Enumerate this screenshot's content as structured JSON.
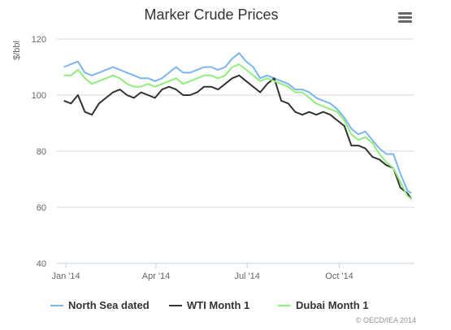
{
  "chart_data": {
    "type": "line",
    "title": "Marker Crude Prices",
    "xlabel": "",
    "ylabel": "$/bbl",
    "ylim": [
      40,
      120
    ],
    "yticks": [
      40,
      60,
      80,
      100,
      120
    ],
    "xlim": [
      "2013-12-23",
      "2014-12-15"
    ],
    "xticks": [
      {
        "date": "2014-01-01",
        "label": "Jan '14"
      },
      {
        "date": "2014-04-01",
        "label": "Apr '14"
      },
      {
        "date": "2014-07-01",
        "label": "Jul '14"
      },
      {
        "date": "2014-10-01",
        "label": "Oct '14"
      }
    ],
    "grid": true,
    "legend": "bottom",
    "credit": "© OECD/IEA 2014",
    "series": [
      {
        "name": "North Sea dated",
        "color": "#7cb5ec",
        "points": [
          [
            "2013-12-30",
            110
          ],
          [
            "2014-01-06",
            111
          ],
          [
            "2014-01-13",
            112
          ],
          [
            "2014-01-20",
            108
          ],
          [
            "2014-01-27",
            107
          ],
          [
            "2014-02-03",
            108
          ],
          [
            "2014-02-10",
            109
          ],
          [
            "2014-02-17",
            110
          ],
          [
            "2014-02-24",
            109
          ],
          [
            "2014-03-03",
            108
          ],
          [
            "2014-03-10",
            107
          ],
          [
            "2014-03-17",
            106
          ],
          [
            "2014-03-24",
            106
          ],
          [
            "2014-03-31",
            105
          ],
          [
            "2014-04-07",
            106
          ],
          [
            "2014-04-14",
            108
          ],
          [
            "2014-04-21",
            110
          ],
          [
            "2014-04-28",
            108
          ],
          [
            "2014-05-05",
            108
          ],
          [
            "2014-05-12",
            109
          ],
          [
            "2014-05-19",
            110
          ],
          [
            "2014-05-26",
            110
          ],
          [
            "2014-06-02",
            109
          ],
          [
            "2014-06-09",
            110
          ],
          [
            "2014-06-16",
            113
          ],
          [
            "2014-06-23",
            115
          ],
          [
            "2014-06-30",
            112
          ],
          [
            "2014-07-07",
            110
          ],
          [
            "2014-07-14",
            106
          ],
          [
            "2014-07-21",
            107
          ],
          [
            "2014-07-28",
            106
          ],
          [
            "2014-08-04",
            105
          ],
          [
            "2014-08-11",
            104
          ],
          [
            "2014-08-18",
            102
          ],
          [
            "2014-08-25",
            102
          ],
          [
            "2014-09-01",
            101
          ],
          [
            "2014-09-08",
            99
          ],
          [
            "2014-09-15",
            98
          ],
          [
            "2014-09-22",
            97
          ],
          [
            "2014-09-29",
            95
          ],
          [
            "2014-10-06",
            92
          ],
          [
            "2014-10-13",
            88
          ],
          [
            "2014-10-20",
            86
          ],
          [
            "2014-10-27",
            87
          ],
          [
            "2014-11-03",
            84
          ],
          [
            "2014-11-10",
            81
          ],
          [
            "2014-11-17",
            79
          ],
          [
            "2014-11-24",
            79
          ],
          [
            "2014-12-01",
            72
          ],
          [
            "2014-12-08",
            66
          ],
          [
            "2014-12-12",
            65
          ]
        ]
      },
      {
        "name": "WTI Month 1",
        "color": "#333333",
        "points": [
          [
            "2013-12-30",
            98
          ],
          [
            "2014-01-06",
            97
          ],
          [
            "2014-01-13",
            100
          ],
          [
            "2014-01-20",
            94
          ],
          [
            "2014-01-27",
            93
          ],
          [
            "2014-02-03",
            97
          ],
          [
            "2014-02-10",
            99
          ],
          [
            "2014-02-17",
            101
          ],
          [
            "2014-02-24",
            102
          ],
          [
            "2014-03-03",
            100
          ],
          [
            "2014-03-10",
            99
          ],
          [
            "2014-03-17",
            101
          ],
          [
            "2014-03-24",
            100
          ],
          [
            "2014-03-31",
            99
          ],
          [
            "2014-04-07",
            102
          ],
          [
            "2014-04-14",
            103
          ],
          [
            "2014-04-21",
            102
          ],
          [
            "2014-04-28",
            100
          ],
          [
            "2014-05-05",
            100
          ],
          [
            "2014-05-12",
            101
          ],
          [
            "2014-05-19",
            103
          ],
          [
            "2014-05-26",
            103
          ],
          [
            "2014-06-02",
            102
          ],
          [
            "2014-06-09",
            104
          ],
          [
            "2014-06-16",
            106
          ],
          [
            "2014-06-23",
            107
          ],
          [
            "2014-06-30",
            105
          ],
          [
            "2014-07-07",
            103
          ],
          [
            "2014-07-14",
            101
          ],
          [
            "2014-07-21",
            104
          ],
          [
            "2014-07-28",
            106
          ],
          [
            "2014-08-04",
            98
          ],
          [
            "2014-08-11",
            97
          ],
          [
            "2014-08-18",
            94
          ],
          [
            "2014-08-25",
            93
          ],
          [
            "2014-09-01",
            94
          ],
          [
            "2014-09-08",
            93
          ],
          [
            "2014-09-15",
            94
          ],
          [
            "2014-09-22",
            93
          ],
          [
            "2014-09-29",
            91
          ],
          [
            "2014-10-06",
            89
          ],
          [
            "2014-10-13",
            82
          ],
          [
            "2014-10-20",
            82
          ],
          [
            "2014-10-27",
            81
          ],
          [
            "2014-11-03",
            78
          ],
          [
            "2014-11-10",
            77
          ],
          [
            "2014-11-17",
            75
          ],
          [
            "2014-11-24",
            74
          ],
          [
            "2014-12-01",
            67
          ],
          [
            "2014-12-08",
            65
          ],
          [
            "2014-12-12",
            63
          ]
        ]
      },
      {
        "name": "Dubai Month 1",
        "color": "#90ed7d",
        "points": [
          [
            "2013-12-30",
            107
          ],
          [
            "2014-01-06",
            107
          ],
          [
            "2014-01-13",
            109
          ],
          [
            "2014-01-20",
            106
          ],
          [
            "2014-01-27",
            104
          ],
          [
            "2014-02-03",
            105
          ],
          [
            "2014-02-10",
            106
          ],
          [
            "2014-02-17",
            107
          ],
          [
            "2014-02-24",
            106
          ],
          [
            "2014-03-03",
            104
          ],
          [
            "2014-03-10",
            103
          ],
          [
            "2014-03-17",
            103
          ],
          [
            "2014-03-24",
            104
          ],
          [
            "2014-03-31",
            103
          ],
          [
            "2014-04-07",
            104
          ],
          [
            "2014-04-14",
            105
          ],
          [
            "2014-04-21",
            106
          ],
          [
            "2014-04-28",
            104
          ],
          [
            "2014-05-05",
            105
          ],
          [
            "2014-05-12",
            106
          ],
          [
            "2014-05-19",
            107
          ],
          [
            "2014-05-26",
            107
          ],
          [
            "2014-06-02",
            106
          ],
          [
            "2014-06-09",
            107
          ],
          [
            "2014-06-16",
            110
          ],
          [
            "2014-06-23",
            111
          ],
          [
            "2014-06-30",
            109
          ],
          [
            "2014-07-07",
            107
          ],
          [
            "2014-07-14",
            105
          ],
          [
            "2014-07-21",
            106
          ],
          [
            "2014-07-28",
            105
          ],
          [
            "2014-08-04",
            104
          ],
          [
            "2014-08-11",
            103
          ],
          [
            "2014-08-18",
            101
          ],
          [
            "2014-08-25",
            101
          ],
          [
            "2014-09-01",
            99
          ],
          [
            "2014-09-08",
            97
          ],
          [
            "2014-09-15",
            96
          ],
          [
            "2014-09-22",
            95
          ],
          [
            "2014-09-29",
            94
          ],
          [
            "2014-10-06",
            91
          ],
          [
            "2014-10-13",
            86
          ],
          [
            "2014-10-20",
            84
          ],
          [
            "2014-10-27",
            85
          ],
          [
            "2014-11-03",
            83
          ],
          [
            "2014-11-10",
            79
          ],
          [
            "2014-11-17",
            76
          ],
          [
            "2014-11-24",
            74
          ],
          [
            "2014-12-01",
            69
          ],
          [
            "2014-12-08",
            64
          ],
          [
            "2014-12-12",
            63
          ]
        ]
      }
    ]
  },
  "menu": {
    "icon": "hamburger-menu-icon"
  }
}
